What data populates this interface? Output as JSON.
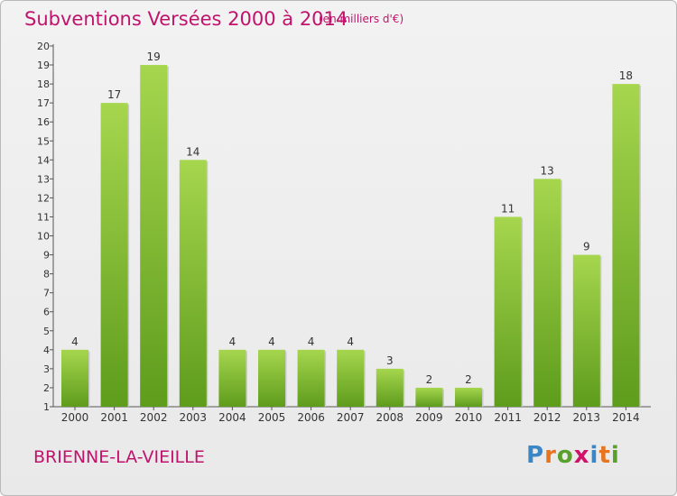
{
  "header": {
    "title": "Subventions Versées 2000 à 2014",
    "subtitle": "(en milliers d'€)"
  },
  "footer": {
    "commune": "BRIENNE-LA-VIEILLE",
    "logo": [
      "P",
      "r",
      "o",
      "x",
      "i",
      "t",
      "i"
    ],
    "logo_colors": [
      "#3d86c6",
      "#e8741e",
      "#5aa02c",
      "#d0126b",
      "#3d86c6",
      "#e8741e",
      "#5aa02c"
    ]
  },
  "chart_data": {
    "type": "bar",
    "title": "Subventions Versées 2000 à 2014",
    "subtitle": "(en milliers d'€)",
    "xlabel": "",
    "ylabel": "",
    "categories": [
      "2000",
      "2001",
      "2002",
      "2003",
      "2004",
      "2005",
      "2006",
      "2007",
      "2008",
      "2009",
      "2010",
      "2011",
      "2012",
      "2013",
      "2014"
    ],
    "values": [
      4,
      17,
      19,
      14,
      4,
      4,
      4,
      4,
      3,
      2,
      2,
      11,
      13,
      9,
      18
    ],
    "ylim": [
      1,
      20
    ],
    "yticks": [
      1,
      2,
      3,
      4,
      5,
      6,
      7,
      8,
      9,
      10,
      11,
      12,
      13,
      14,
      15,
      16,
      17,
      18,
      19,
      20
    ],
    "grid": false,
    "bar_color_top": "#a6d64e",
    "bar_color_bottom": "#5e9c1c"
  }
}
